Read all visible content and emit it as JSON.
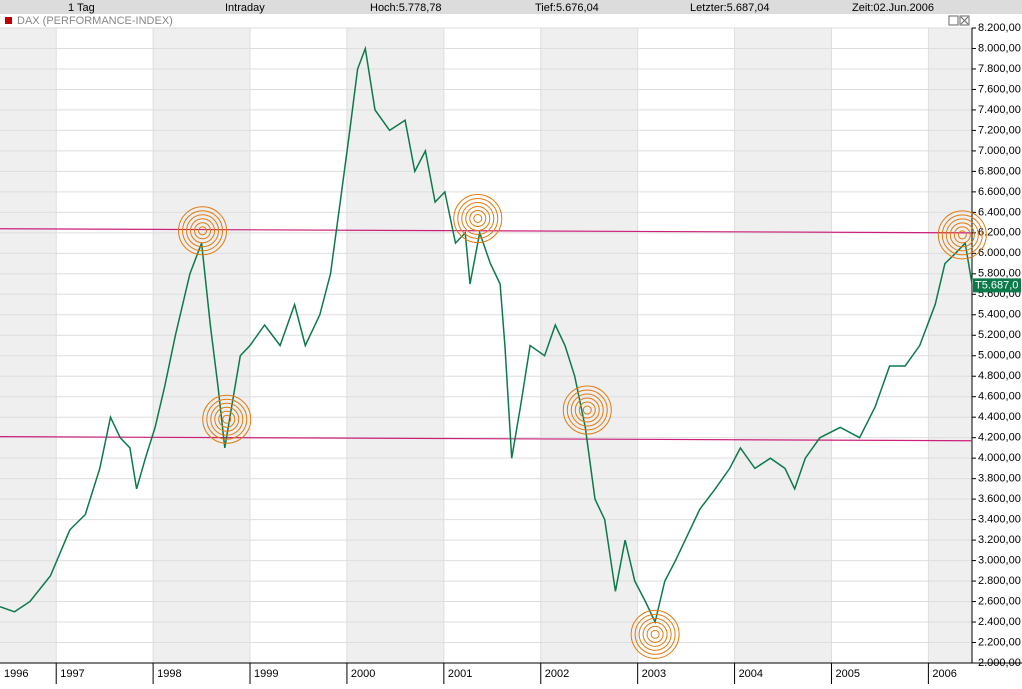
{
  "header": {
    "period": "1 Tag",
    "mode": "Intraday",
    "high": "Hoch:5.778,78",
    "low": "Tief:5.676,04",
    "last": "Letzter:5.687,04",
    "time": "Zeit:02.Jun.2006"
  },
  "chart_data": {
    "type": "line",
    "title": "DAX (PERFORMANCE-INDEX)",
    "x": [
      1996.42,
      1996.57,
      1996.73,
      1996.94,
      1997.14,
      1997.3,
      1997.45,
      1997.56,
      1997.66,
      1997.76,
      1997.83,
      1997.92,
      1998.02,
      1998.12,
      1998.23,
      1998.38,
      1998.5,
      1998.59,
      1998.67,
      1998.74,
      1998.81,
      1998.9,
      1999.0,
      1999.15,
      1999.31,
      1999.46,
      1999.57,
      1999.72,
      1999.83,
      1999.93,
      2000.03,
      2000.11,
      2000.19,
      2000.29,
      2000.44,
      2000.6,
      2000.7,
      2000.81,
      2000.91,
      2001.01,
      2001.12,
      2001.22,
      2001.27,
      2001.37,
      2001.48,
      2001.58,
      2001.63,
      2001.7,
      2001.79,
      2001.89,
      2002.04,
      2002.15,
      2002.25,
      2002.35,
      2002.46,
      2002.56,
      2002.66,
      2002.77,
      2002.87,
      2002.97,
      2003.08,
      2003.18,
      2003.28,
      2003.39,
      2003.54,
      2003.64,
      2003.8,
      2003.95,
      2004.06,
      2004.21,
      2004.37,
      2004.52,
      2004.62,
      2004.73,
      2004.88,
      2005.09,
      2005.29,
      2005.45,
      2005.6,
      2005.76,
      2005.91,
      2006.07,
      2006.17,
      2006.28,
      2006.38,
      2006.45
    ],
    "series": [
      {
        "color": "#0b7a4b",
        "values": [
          2550,
          2500,
          2600,
          2850,
          3300,
          3450,
          3900,
          4400,
          4200,
          4100,
          3700,
          4000,
          4300,
          4700,
          5200,
          5800,
          6100,
          5300,
          4700,
          4100,
          4500,
          5000,
          5100,
          5300,
          5100,
          5500,
          5100,
          5400,
          5800,
          6500,
          7200,
          7800,
          8000,
          7400,
          7200,
          7300,
          6800,
          7000,
          6500,
          6600,
          6100,
          6200,
          5700,
          6200,
          5900,
          5700,
          5100,
          4000,
          4500,
          5100,
          5000,
          5300,
          5100,
          4800,
          4300,
          3600,
          3400,
          2700,
          3200,
          2800,
          2600,
          2400,
          2800,
          3000,
          3300,
          3500,
          3700,
          3900,
          4100,
          3900,
          4000,
          3900,
          3700,
          4000,
          4200,
          4300,
          4200,
          4500,
          4900,
          4900,
          5100,
          5500,
          5900,
          6000,
          6100,
          5700
        ]
      }
    ],
    "xlim": [
      1996.42,
      2006.45
    ],
    "xticks": [
      1996,
      1997,
      1998,
      1999,
      2000,
      2001,
      2002,
      2003,
      2004,
      2005,
      2006
    ],
    "ylim": [
      2000,
      8200
    ],
    "yticks": [
      {
        "value": 2000,
        "label": "2.000,00"
      },
      {
        "value": 2200,
        "label": "2.200,00"
      },
      {
        "value": 2400,
        "label": "2.400,00"
      },
      {
        "value": 2600,
        "label": "2.600,00"
      },
      {
        "value": 2800,
        "label": "2.800,00"
      },
      {
        "value": 3000,
        "label": "3.000,00"
      },
      {
        "value": 3200,
        "label": "3.200,00"
      },
      {
        "value": 3400,
        "label": "3.400,00"
      },
      {
        "value": 3600,
        "label": "3.600,00"
      },
      {
        "value": 3800,
        "label": "3.800,00"
      },
      {
        "value": 4000,
        "label": "4.000,00"
      },
      {
        "value": 4200,
        "label": "4.200,00"
      },
      {
        "value": 4400,
        "label": "4.400,00"
      },
      {
        "value": 4600,
        "label": "4.600,00"
      },
      {
        "value": 4800,
        "label": "4.800,00"
      },
      {
        "value": 5000,
        "label": "5.000,00"
      },
      {
        "value": 5200,
        "label": "5.200,00"
      },
      {
        "value": 5400,
        "label": "5.400,00"
      },
      {
        "value": 5600,
        "label": "5.600,00"
      },
      {
        "value": 5800,
        "label": "5.800,00"
      },
      {
        "value": 6000,
        "label": "6.000,00"
      },
      {
        "value": 6200,
        "label": "6.200,00"
      },
      {
        "value": 6400,
        "label": "6.400,00"
      },
      {
        "value": 6600,
        "label": "6.600,00"
      },
      {
        "value": 6800,
        "label": "6.800,00"
      },
      {
        "value": 7000,
        "label": "7.000,00"
      },
      {
        "value": 7200,
        "label": "7.200,00"
      },
      {
        "value": 7400,
        "label": "7.400,00"
      },
      {
        "value": 7600,
        "label": "7.600,00"
      },
      {
        "value": 7800,
        "label": "7.800,00"
      },
      {
        "value": 8000,
        "label": "8.000,00"
      },
      {
        "value": 8200,
        "label": "8.200,00"
      }
    ],
    "grid": true,
    "trendlines": [
      {
        "color": "#cc1f7a",
        "y": [
          6240,
          6200
        ]
      },
      {
        "color": "#cc1f7a",
        "y": [
          4210,
          4170
        ]
      }
    ],
    "markers": [
      {
        "color": "#e07a10",
        "x": 1998.51,
        "y": 6220
      },
      {
        "color": "#e07a10",
        "x": 1998.76,
        "y": 4380
      },
      {
        "color": "#e07a10",
        "x": 2001.35,
        "y": 6340
      },
      {
        "color": "#e07a10",
        "x": 2002.48,
        "y": 4470
      },
      {
        "color": "#e07a10",
        "x": 2003.18,
        "y": 2280
      },
      {
        "color": "#e07a10",
        "x": 2006.35,
        "y": 6180
      }
    ],
    "last_price": {
      "value": 5687.0,
      "label": "T5.687,0"
    }
  }
}
